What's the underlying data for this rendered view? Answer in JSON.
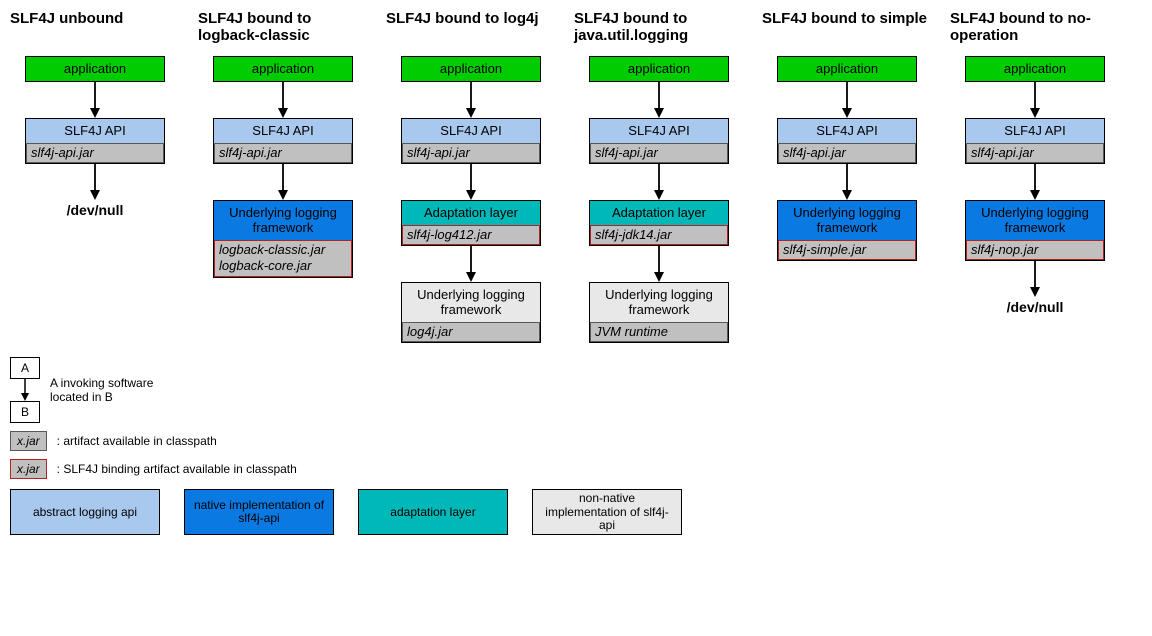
{
  "colors": {
    "application": "#00cc00",
    "api": "#a8c8ee",
    "native": "#0a7ae2",
    "adaptation": "#00b8b8",
    "implementation": "#e8e8e8",
    "jar_bg": "#c0c0c0",
    "jar_border": "#585858",
    "jar_border_red": "#b22222"
  },
  "columns": [
    {
      "title": "SLF4J unbound",
      "nodes": [
        {
          "kind": "app",
          "label": "application"
        },
        {
          "kind": "api",
          "label": "SLF4J API",
          "jars": [
            "slf4j-api.jar"
          ],
          "jar_border": "normal"
        },
        {
          "kind": "text",
          "label": "/dev/null"
        }
      ]
    },
    {
      "title": "SLF4J bound to logback-classic",
      "nodes": [
        {
          "kind": "app",
          "label": "application"
        },
        {
          "kind": "api",
          "label": "SLF4J API",
          "jars": [
            "slf4j-api.jar"
          ],
          "jar_border": "normal"
        },
        {
          "kind": "native",
          "label": "Underlying logging framework",
          "jars": [
            "logback-classic.jar",
            "logback-core.jar"
          ],
          "jar_border": "red"
        }
      ]
    },
    {
      "title": "SLF4J bound to log4j",
      "nodes": [
        {
          "kind": "app",
          "label": "application"
        },
        {
          "kind": "api",
          "label": "SLF4J API",
          "jars": [
            "slf4j-api.jar"
          ],
          "jar_border": "normal"
        },
        {
          "kind": "adapt",
          "label": "Adaptation layer",
          "jars": [
            "slf4j-log412.jar"
          ],
          "jar_border": "red"
        },
        {
          "kind": "impl",
          "label": "Underlying logging framework",
          "jars": [
            "log4j.jar"
          ],
          "jar_border": "normal"
        }
      ]
    },
    {
      "title": "SLF4J bound to java.util.logging",
      "nodes": [
        {
          "kind": "app",
          "label": "application"
        },
        {
          "kind": "api",
          "label": "SLF4J API",
          "jars": [
            "slf4j-api.jar"
          ],
          "jar_border": "normal"
        },
        {
          "kind": "adapt",
          "label": "Adaptation layer",
          "jars": [
            "slf4j-jdk14.jar"
          ],
          "jar_border": "red"
        },
        {
          "kind": "impl",
          "label": "Underlying logging framework",
          "jars": [
            "JVM runtime"
          ],
          "jar_border": "normal"
        }
      ]
    },
    {
      "title": "SLF4J bound to simple",
      "nodes": [
        {
          "kind": "app",
          "label": "application"
        },
        {
          "kind": "api",
          "label": "SLF4J API",
          "jars": [
            "slf4j-api.jar"
          ],
          "jar_border": "normal"
        },
        {
          "kind": "native",
          "label": "Underlying logging framework",
          "jars": [
            "slf4j-simple.jar"
          ],
          "jar_border": "red"
        }
      ]
    },
    {
      "title": "SLF4J bound to no-operation",
      "nodes": [
        {
          "kind": "app",
          "label": "application"
        },
        {
          "kind": "api",
          "label": "SLF4J API",
          "jars": [
            "slf4j-api.jar"
          ],
          "jar_border": "normal"
        },
        {
          "kind": "native",
          "label": "Underlying logging framework",
          "jars": [
            "slf4j-nop.jar"
          ],
          "jar_border": "red"
        },
        {
          "kind": "text",
          "label": "/dev/null"
        }
      ]
    }
  ],
  "legend": {
    "invoking": {
      "a": "A",
      "b": "B",
      "text": "A invoking software located in B"
    },
    "jar_normal": {
      "label": "x.jar",
      "text": ": artifact available in classpath"
    },
    "jar_red": {
      "label": "x.jar",
      "text": ": SLF4J binding artifact available in classpath"
    },
    "swatches": [
      {
        "color": "api",
        "label": "abstract logging api"
      },
      {
        "color": "native",
        "label": "native implementation of slf4j-api"
      },
      {
        "color": "adapt",
        "label": "adaptation layer"
      },
      {
        "color": "impl",
        "label": "non-native implementation of slf4j-api"
      }
    ]
  }
}
